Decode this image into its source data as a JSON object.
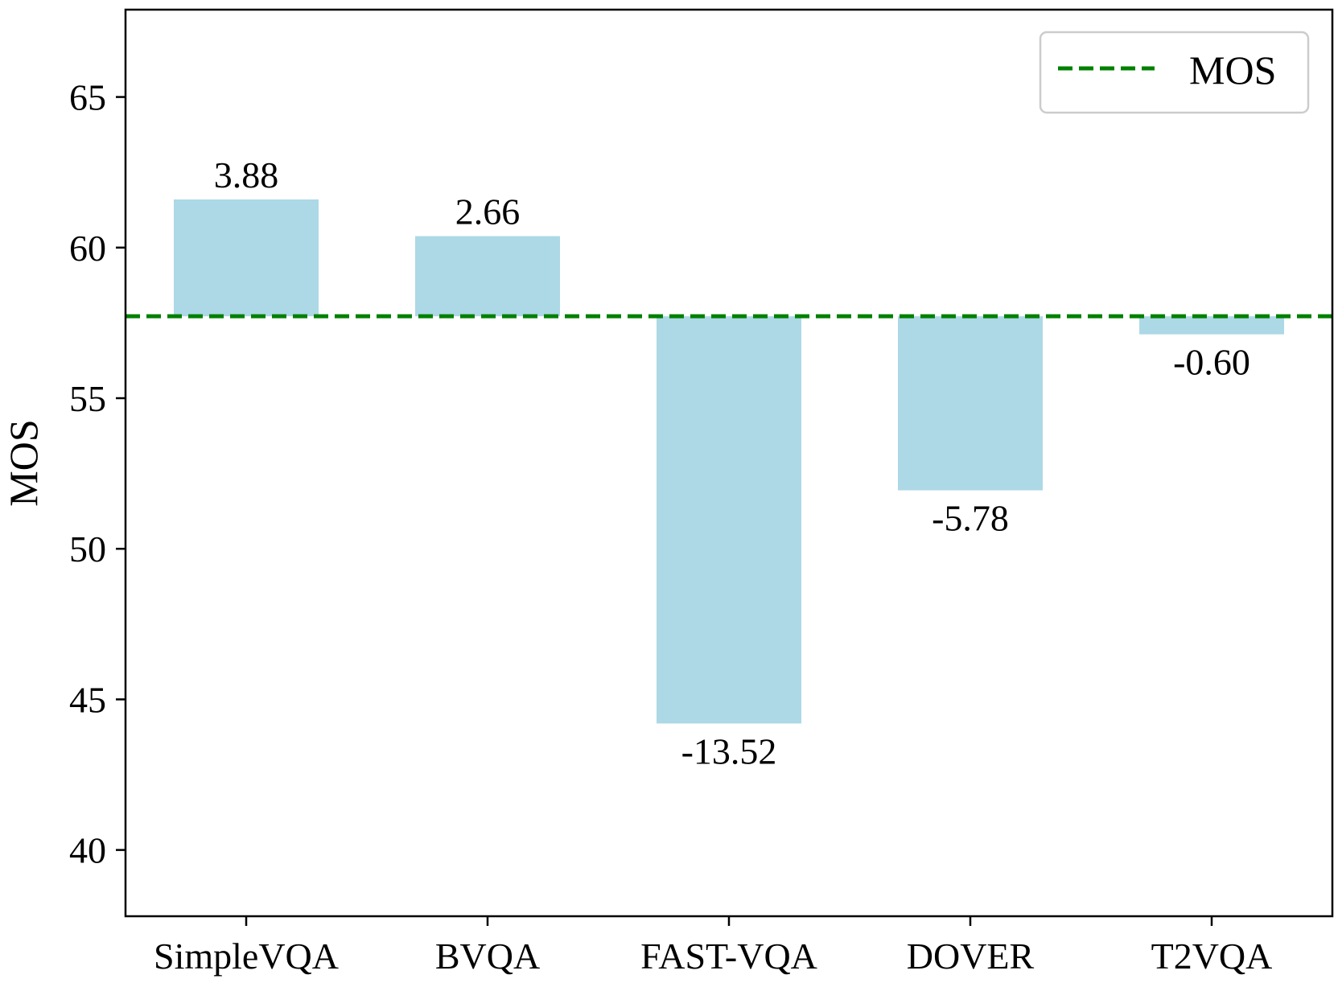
{
  "chart_data": {
    "type": "bar",
    "title": "",
    "xlabel": "",
    "ylabel": "MOS",
    "categories": [
      "SimpleVQA",
      "BVQA",
      "FAST-VQA",
      "DOVER",
      "T2VQA"
    ],
    "values": [
      61.6,
      60.38,
      44.2,
      51.94,
      57.12
    ],
    "baseline": 57.72,
    "data_labels": [
      "3.88",
      "2.66",
      "-13.52",
      "-5.78",
      "-0.60"
    ],
    "ylim": [
      37.8,
      67.9
    ],
    "yticks": [
      40,
      45,
      50,
      55,
      60,
      65
    ],
    "grid": false,
    "bar_color": "#add8e6",
    "reference_line": {
      "name": "MOS",
      "color": "#008000",
      "style": "dashed"
    },
    "legend": {
      "position": "top-right",
      "entries": [
        "MOS"
      ]
    }
  }
}
